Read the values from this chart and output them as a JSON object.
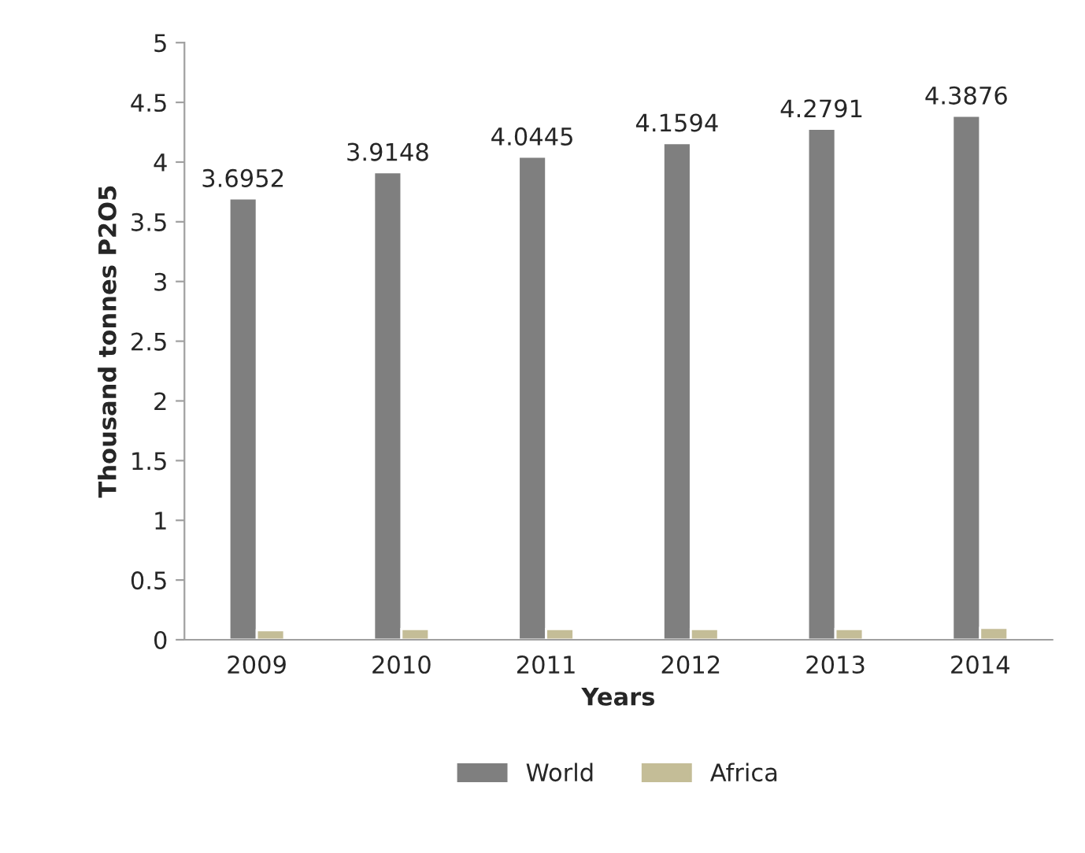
{
  "chart_data": {
    "type": "bar",
    "xlabel": "Years",
    "ylabel": "Thousand tonnes P2O5",
    "categories": [
      "2009",
      "2010",
      "2011",
      "2012",
      "2013",
      "2014"
    ],
    "series": [
      {
        "name": "World",
        "color": "#7f7f7f",
        "values": [
          3.6952,
          3.9148,
          4.0445,
          4.1594,
          4.2791,
          4.3876
        ],
        "value_labels": [
          "3.6952",
          "3.9148",
          "4.0445",
          "4.1594",
          "4.2791",
          "4.3876"
        ]
      },
      {
        "name": "Africa",
        "color": "#c4bd97",
        "values": [
          0.08,
          0.09,
          0.09,
          0.09,
          0.09,
          0.1
        ]
      }
    ],
    "ylim": [
      0,
      5
    ],
    "yticks": [
      0,
      0.5,
      1,
      1.5,
      2,
      2.5,
      3,
      3.5,
      4,
      4.5,
      5
    ],
    "grid": false,
    "legend": "bottom"
  }
}
